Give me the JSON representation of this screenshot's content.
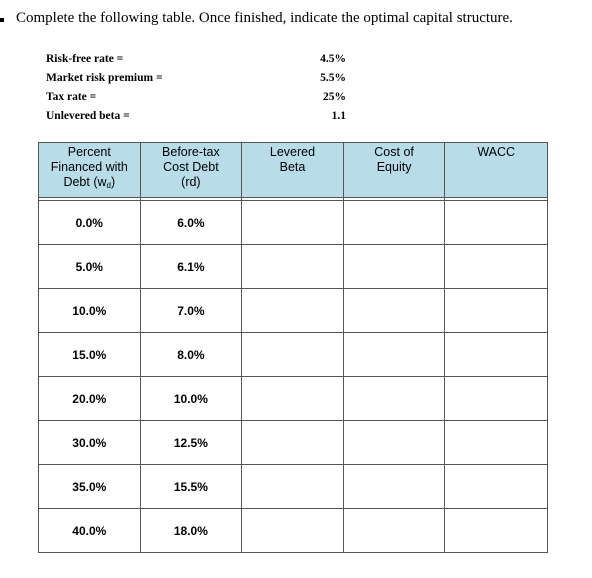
{
  "instruction": "Complete the following table. Once finished, indicate the optimal capital structure.",
  "parameters": [
    {
      "label": "Risk-free rate  =",
      "value": "4.5%"
    },
    {
      "label": "Market risk premium  =",
      "value": "5.5%"
    },
    {
      "label": "Tax rate  =",
      "value": "25%"
    },
    {
      "label": "Unlevered beta  =",
      "value": "1.1"
    }
  ],
  "table": {
    "headers": {
      "percent_line1": "Percent",
      "percent_line2": "Financed with",
      "percent_line3_pre": "Debt (w",
      "percent_line3_sub": "d",
      "percent_line3_post": ")",
      "debt_line1": "Before-tax",
      "debt_line2": "Cost Debt",
      "debt_line3": "(rd)",
      "beta_line1": "Levered",
      "beta_line2": "Beta",
      "equity_line1": "Cost of",
      "equity_line2": "Equity",
      "wacc": "WACC"
    },
    "rows": [
      {
        "wd": "0.0%",
        "rd": "6.0%",
        "beta": "",
        "equity": "",
        "wacc": ""
      },
      {
        "wd": "5.0%",
        "rd": "6.1%",
        "beta": "",
        "equity": "",
        "wacc": ""
      },
      {
        "wd": "10.0%",
        "rd": "7.0%",
        "beta": "",
        "equity": "",
        "wacc": ""
      },
      {
        "wd": "15.0%",
        "rd": "8.0%",
        "beta": "",
        "equity": "",
        "wacc": ""
      },
      {
        "wd": "20.0%",
        "rd": "10.0%",
        "beta": "",
        "equity": "",
        "wacc": ""
      },
      {
        "wd": "30.0%",
        "rd": "12.5%",
        "beta": "",
        "equity": "",
        "wacc": ""
      },
      {
        "wd": "35.0%",
        "rd": "15.5%",
        "beta": "",
        "equity": "",
        "wacc": ""
      },
      {
        "wd": "40.0%",
        "rd": "18.0%",
        "beta": "",
        "equity": "",
        "wacc": ""
      }
    ]
  }
}
